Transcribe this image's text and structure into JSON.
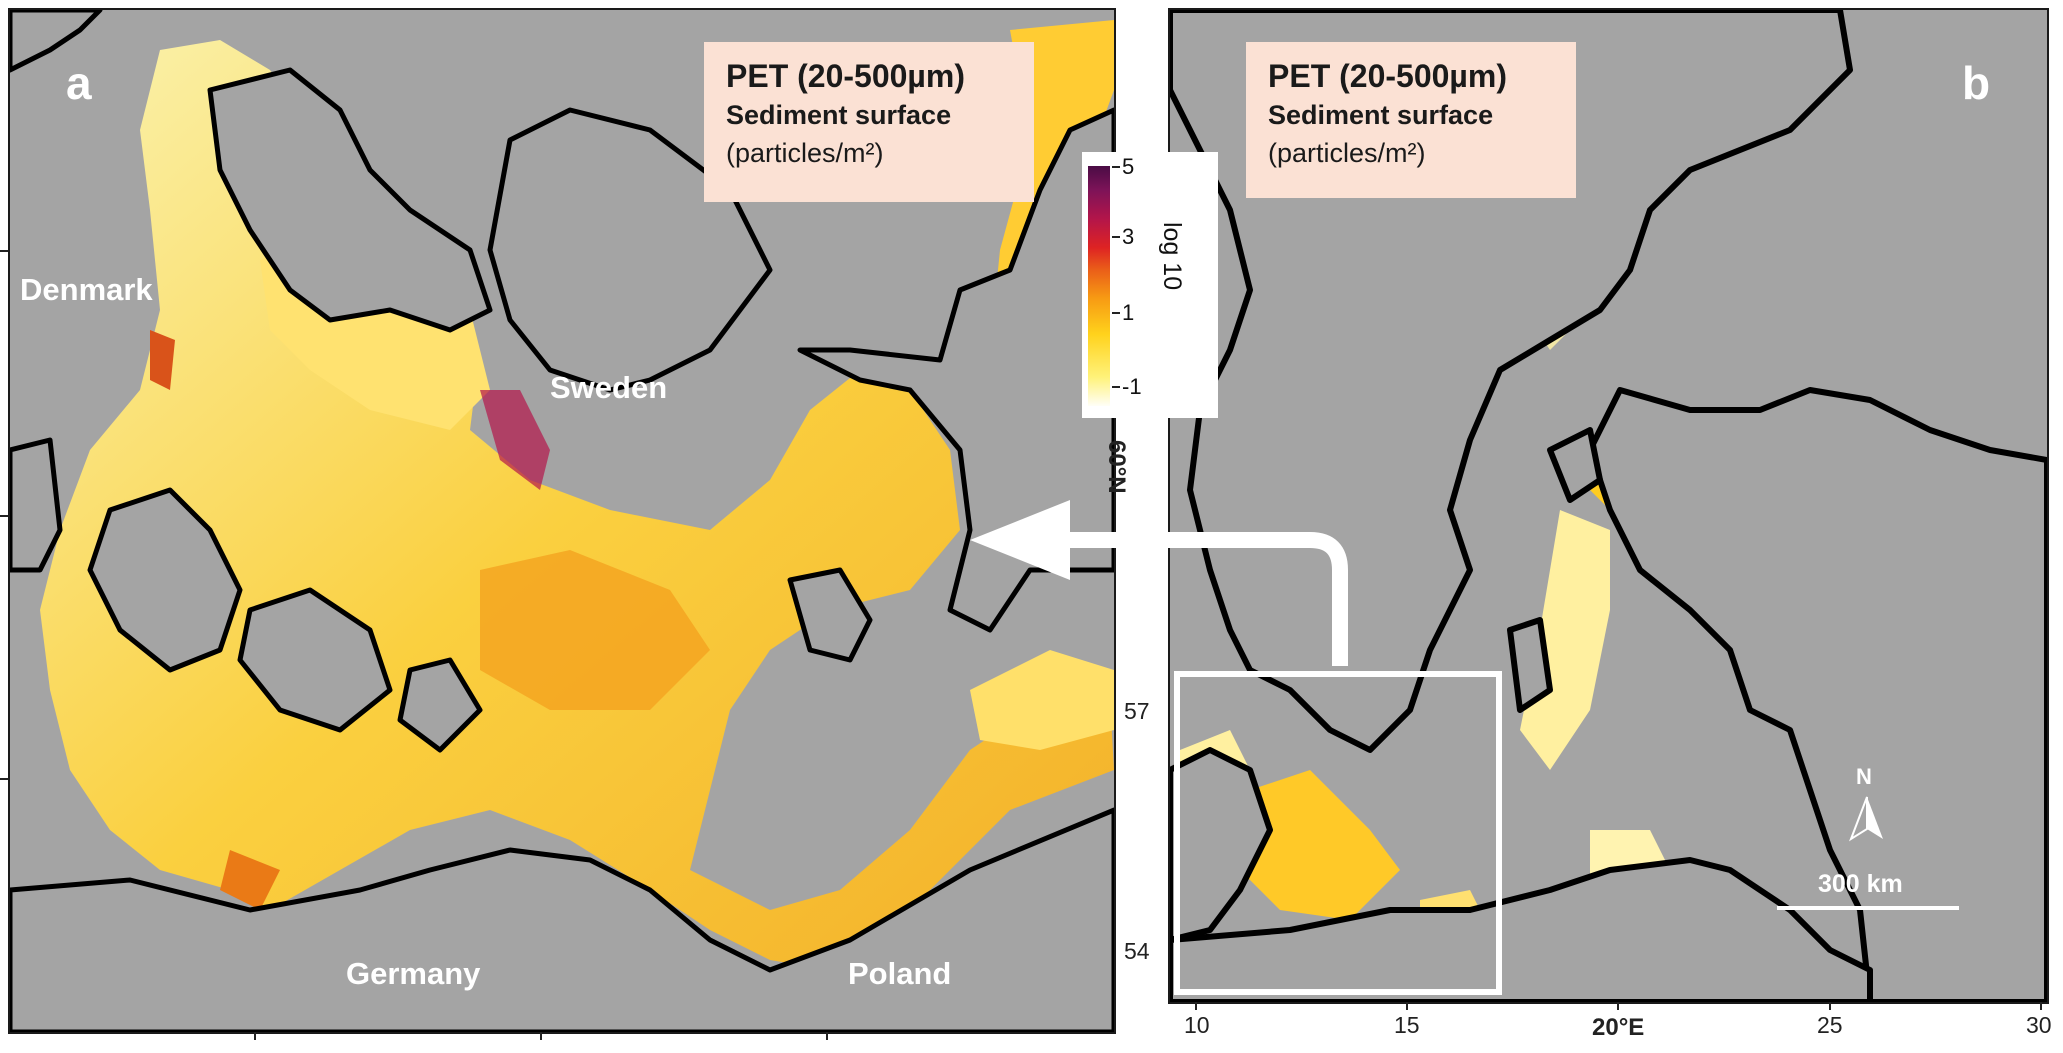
{
  "panel_a": {
    "letter": "a",
    "legend": {
      "title": "PET (20-500µm)",
      "subtitle": "Sediment surface",
      "unit": "(particles/m²)"
    },
    "countries": {
      "denmark": "Denmark",
      "sweden": "Sweden",
      "germany": "Germany",
      "poland": "Poland"
    }
  },
  "panel_b": {
    "letter": "b",
    "legend": {
      "title": "PET (20-500µm)",
      "subtitle": "Sediment surface",
      "unit": "(particles/m²)"
    },
    "north_label": "N",
    "scale_bar_label": "300 km"
  },
  "colorbar": {
    "title": "log 10",
    "ticks": [
      "5",
      "3",
      "1",
      "-1"
    ],
    "colors": [
      "#fffef6",
      "#fff27a",
      "#ffd21c",
      "#f79a13",
      "#ea5d19",
      "#de2323",
      "#b3154a",
      "#7d1358",
      "#4a0c45"
    ]
  },
  "axes": {
    "lat_title": "60°N",
    "lat_ticks": [
      "57",
      "54"
    ],
    "lon_title": "20°E",
    "lon_ticks": [
      "10",
      "15",
      "25",
      "30"
    ]
  },
  "style": {
    "sea_color": "#a4a4a4",
    "coast_color": "#000000",
    "legend_bg": "#fbe1d4"
  }
}
